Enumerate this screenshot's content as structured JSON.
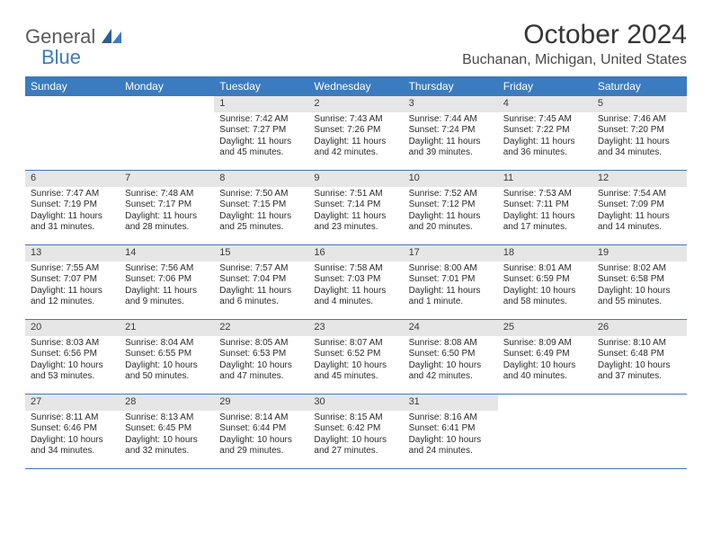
{
  "brand": {
    "line1": "General",
    "line2": "Blue",
    "text_color": "#5a5a5a",
    "accent_color": "#3b7bbf"
  },
  "title": "October 2024",
  "location": "Buchanan, Michigan, United States",
  "colors": {
    "header_bg": "#3b7bbf",
    "header_text": "#ffffff",
    "daynum_bg": "#e6e6e6",
    "rule": "#3b7bbf",
    "background": "#ffffff"
  },
  "day_names": [
    "Sunday",
    "Monday",
    "Tuesday",
    "Wednesday",
    "Thursday",
    "Friday",
    "Saturday"
  ],
  "weeks": [
    [
      null,
      null,
      {
        "n": "1",
        "sr": "Sunrise: 7:42 AM",
        "ss": "Sunset: 7:27 PM",
        "dl": "Daylight: 11 hours and 45 minutes."
      },
      {
        "n": "2",
        "sr": "Sunrise: 7:43 AM",
        "ss": "Sunset: 7:26 PM",
        "dl": "Daylight: 11 hours and 42 minutes."
      },
      {
        "n": "3",
        "sr": "Sunrise: 7:44 AM",
        "ss": "Sunset: 7:24 PM",
        "dl": "Daylight: 11 hours and 39 minutes."
      },
      {
        "n": "4",
        "sr": "Sunrise: 7:45 AM",
        "ss": "Sunset: 7:22 PM",
        "dl": "Daylight: 11 hours and 36 minutes."
      },
      {
        "n": "5",
        "sr": "Sunrise: 7:46 AM",
        "ss": "Sunset: 7:20 PM",
        "dl": "Daylight: 11 hours and 34 minutes."
      }
    ],
    [
      {
        "n": "6",
        "sr": "Sunrise: 7:47 AM",
        "ss": "Sunset: 7:19 PM",
        "dl": "Daylight: 11 hours and 31 minutes."
      },
      {
        "n": "7",
        "sr": "Sunrise: 7:48 AM",
        "ss": "Sunset: 7:17 PM",
        "dl": "Daylight: 11 hours and 28 minutes."
      },
      {
        "n": "8",
        "sr": "Sunrise: 7:50 AM",
        "ss": "Sunset: 7:15 PM",
        "dl": "Daylight: 11 hours and 25 minutes."
      },
      {
        "n": "9",
        "sr": "Sunrise: 7:51 AM",
        "ss": "Sunset: 7:14 PM",
        "dl": "Daylight: 11 hours and 23 minutes."
      },
      {
        "n": "10",
        "sr": "Sunrise: 7:52 AM",
        "ss": "Sunset: 7:12 PM",
        "dl": "Daylight: 11 hours and 20 minutes."
      },
      {
        "n": "11",
        "sr": "Sunrise: 7:53 AM",
        "ss": "Sunset: 7:11 PM",
        "dl": "Daylight: 11 hours and 17 minutes."
      },
      {
        "n": "12",
        "sr": "Sunrise: 7:54 AM",
        "ss": "Sunset: 7:09 PM",
        "dl": "Daylight: 11 hours and 14 minutes."
      }
    ],
    [
      {
        "n": "13",
        "sr": "Sunrise: 7:55 AM",
        "ss": "Sunset: 7:07 PM",
        "dl": "Daylight: 11 hours and 12 minutes."
      },
      {
        "n": "14",
        "sr": "Sunrise: 7:56 AM",
        "ss": "Sunset: 7:06 PM",
        "dl": "Daylight: 11 hours and 9 minutes."
      },
      {
        "n": "15",
        "sr": "Sunrise: 7:57 AM",
        "ss": "Sunset: 7:04 PM",
        "dl": "Daylight: 11 hours and 6 minutes."
      },
      {
        "n": "16",
        "sr": "Sunrise: 7:58 AM",
        "ss": "Sunset: 7:03 PM",
        "dl": "Daylight: 11 hours and 4 minutes."
      },
      {
        "n": "17",
        "sr": "Sunrise: 8:00 AM",
        "ss": "Sunset: 7:01 PM",
        "dl": "Daylight: 11 hours and 1 minute."
      },
      {
        "n": "18",
        "sr": "Sunrise: 8:01 AM",
        "ss": "Sunset: 6:59 PM",
        "dl": "Daylight: 10 hours and 58 minutes."
      },
      {
        "n": "19",
        "sr": "Sunrise: 8:02 AM",
        "ss": "Sunset: 6:58 PM",
        "dl": "Daylight: 10 hours and 55 minutes."
      }
    ],
    [
      {
        "n": "20",
        "sr": "Sunrise: 8:03 AM",
        "ss": "Sunset: 6:56 PM",
        "dl": "Daylight: 10 hours and 53 minutes."
      },
      {
        "n": "21",
        "sr": "Sunrise: 8:04 AM",
        "ss": "Sunset: 6:55 PM",
        "dl": "Daylight: 10 hours and 50 minutes."
      },
      {
        "n": "22",
        "sr": "Sunrise: 8:05 AM",
        "ss": "Sunset: 6:53 PM",
        "dl": "Daylight: 10 hours and 47 minutes."
      },
      {
        "n": "23",
        "sr": "Sunrise: 8:07 AM",
        "ss": "Sunset: 6:52 PM",
        "dl": "Daylight: 10 hours and 45 minutes."
      },
      {
        "n": "24",
        "sr": "Sunrise: 8:08 AM",
        "ss": "Sunset: 6:50 PM",
        "dl": "Daylight: 10 hours and 42 minutes."
      },
      {
        "n": "25",
        "sr": "Sunrise: 8:09 AM",
        "ss": "Sunset: 6:49 PM",
        "dl": "Daylight: 10 hours and 40 minutes."
      },
      {
        "n": "26",
        "sr": "Sunrise: 8:10 AM",
        "ss": "Sunset: 6:48 PM",
        "dl": "Daylight: 10 hours and 37 minutes."
      }
    ],
    [
      {
        "n": "27",
        "sr": "Sunrise: 8:11 AM",
        "ss": "Sunset: 6:46 PM",
        "dl": "Daylight: 10 hours and 34 minutes."
      },
      {
        "n": "28",
        "sr": "Sunrise: 8:13 AM",
        "ss": "Sunset: 6:45 PM",
        "dl": "Daylight: 10 hours and 32 minutes."
      },
      {
        "n": "29",
        "sr": "Sunrise: 8:14 AM",
        "ss": "Sunset: 6:44 PM",
        "dl": "Daylight: 10 hours and 29 minutes."
      },
      {
        "n": "30",
        "sr": "Sunrise: 8:15 AM",
        "ss": "Sunset: 6:42 PM",
        "dl": "Daylight: 10 hours and 27 minutes."
      },
      {
        "n": "31",
        "sr": "Sunrise: 8:16 AM",
        "ss": "Sunset: 6:41 PM",
        "dl": "Daylight: 10 hours and 24 minutes."
      },
      null,
      null
    ]
  ]
}
